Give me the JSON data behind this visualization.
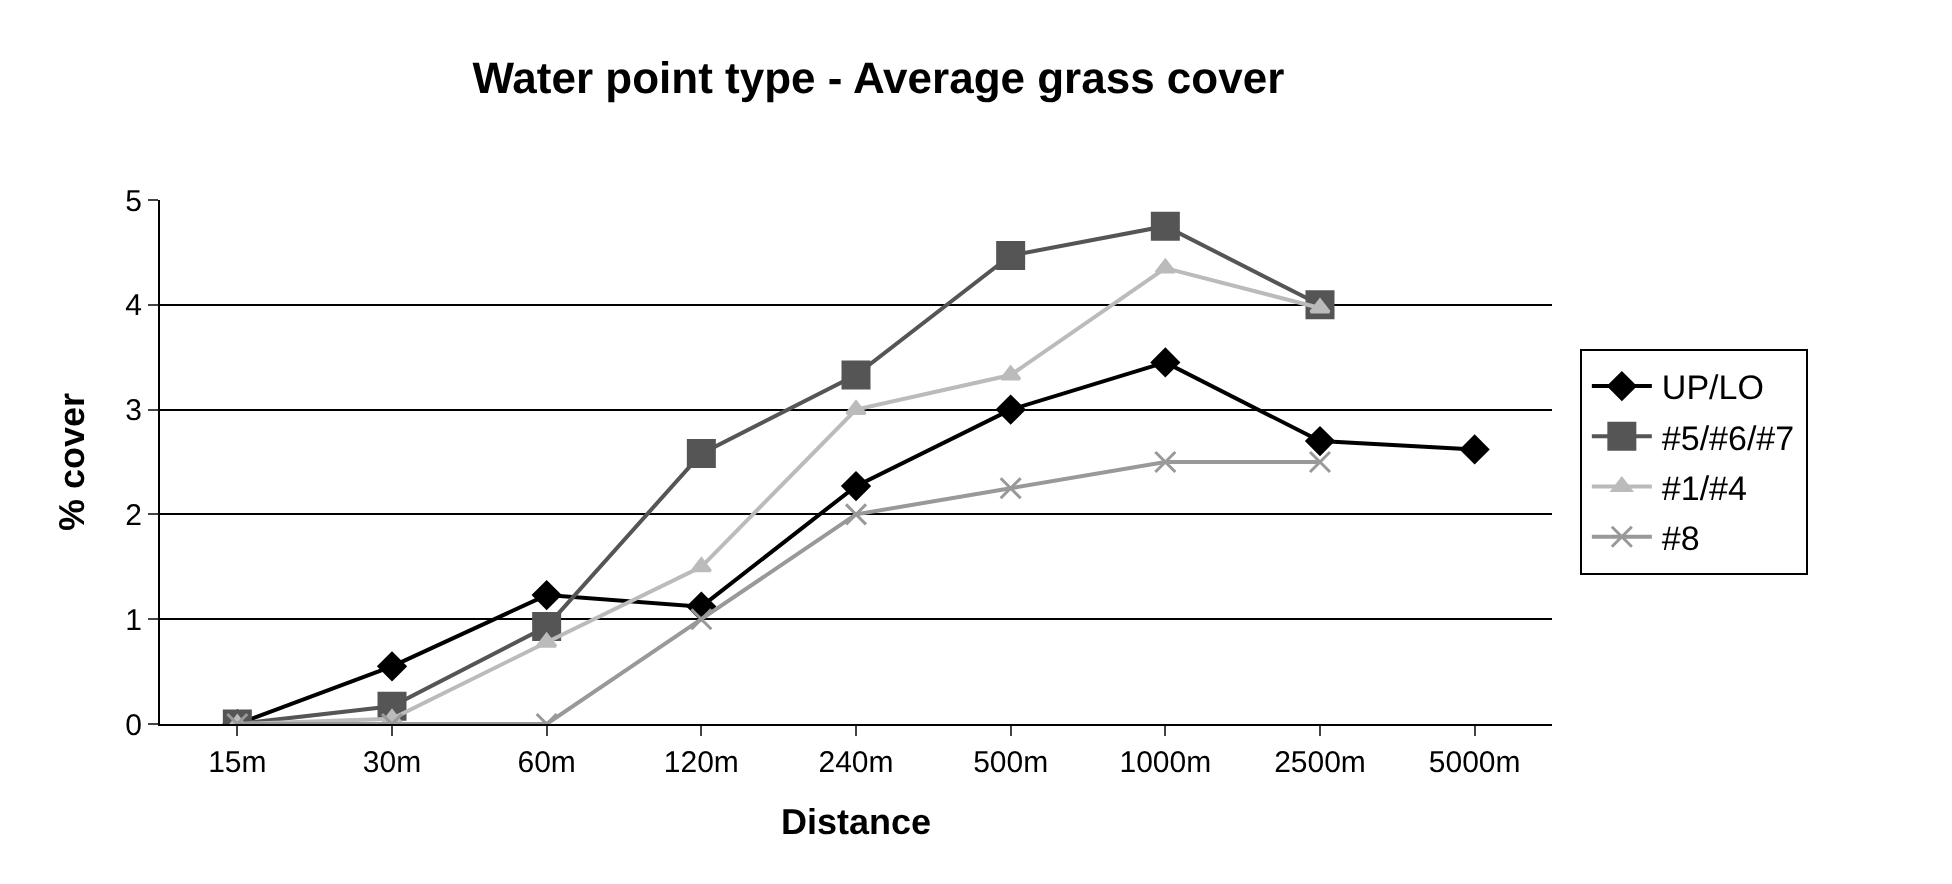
{
  "chart_data": {
    "type": "line",
    "title": "Water point type - Average grass cover",
    "xlabel": "Distance",
    "ylabel": "% cover",
    "categories": [
      "15m",
      "30m",
      "60m",
      "120m",
      "240m",
      "500m",
      "1000m",
      "2500m",
      "5000m"
    ],
    "series": [
      {
        "name": "UP/LO",
        "color": "#000000",
        "marker": "diamond",
        "values": [
          0,
          0.55,
          1.23,
          1.12,
          2.27,
          3.0,
          3.45,
          2.7,
          2.62
        ]
      },
      {
        "name": "#5/#6/#7",
        "color": "#555555",
        "marker": "square",
        "values": [
          0,
          0.17,
          0.93,
          2.58,
          3.33,
          4.47,
          4.75,
          4.0,
          null
        ]
      },
      {
        "name": "#1/#4",
        "color": "#bbbbbb",
        "marker": "triangle",
        "values": [
          0,
          0.05,
          0.78,
          1.5,
          3.0,
          3.33,
          4.35,
          3.97,
          null
        ]
      },
      {
        "name": "#8",
        "color": "#999999",
        "marker": "cross",
        "values": [
          0,
          0,
          0,
          1.0,
          2.0,
          2.25,
          2.5,
          2.5,
          null
        ]
      }
    ],
    "ylim": [
      0,
      5
    ],
    "yticks": [
      0,
      1,
      2,
      3,
      4,
      5
    ],
    "grid": "y",
    "legend": "right",
    "line_style": "solid"
  }
}
